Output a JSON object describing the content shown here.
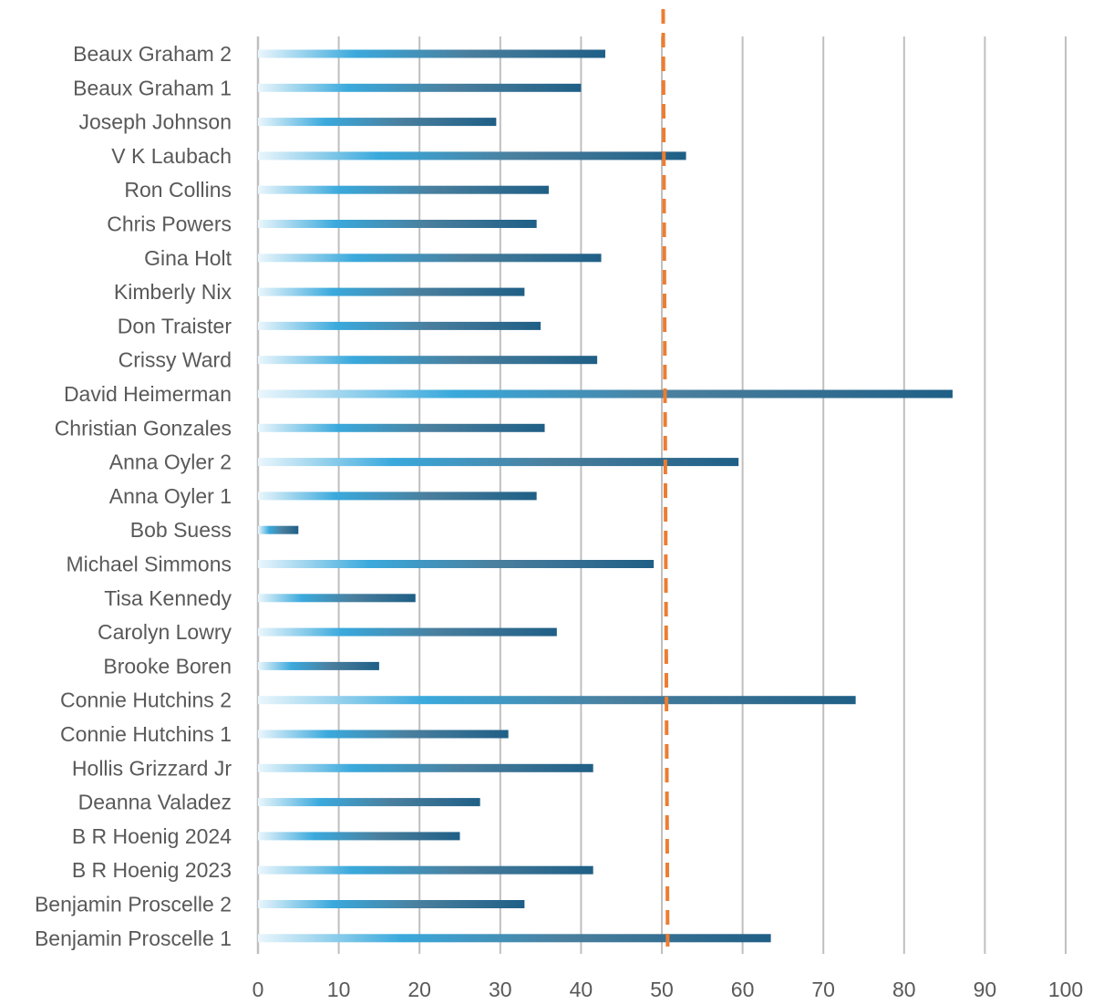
{
  "chart_data": {
    "type": "bar",
    "orientation": "horizontal",
    "categories": [
      "Beaux Graham 2",
      "Beaux Graham 1",
      "Joseph Johnson",
      "V K Laubach",
      "Ron Collins",
      "Chris Powers",
      "Gina Holt",
      "Kimberly Nix",
      "Don Traister",
      "Crissy Ward",
      "David Heimerman",
      "Christian Gonzales",
      "Anna Oyler 2",
      "Anna Oyler 1",
      "Bob Suess",
      "Michael Simmons",
      "Tisa Kennedy",
      "Carolyn Lowry",
      "Brooke Boren",
      "Connie Hutchins 2",
      "Connie Hutchins 1",
      "Hollis Grizzard Jr",
      "Deanna Valadez",
      "B R Hoenig 2024",
      "B R Hoenig 2023",
      "Benjamin Proscelle 2",
      "Benjamin Proscelle 1"
    ],
    "values": [
      43,
      40,
      29.5,
      53,
      36,
      34.5,
      42.5,
      33,
      35,
      42,
      86,
      35.5,
      59.5,
      34.5,
      5,
      49,
      19.5,
      37,
      15,
      74,
      31,
      41.5,
      27.5,
      25,
      41.5,
      33,
      63.5
    ],
    "reference_line": {
      "value": 50.5,
      "style": "dashed"
    },
    "title": "",
    "xlabel": "",
    "ylabel": "",
    "xlim": [
      0,
      100
    ],
    "xticks": [
      "0",
      "10",
      "20",
      "30",
      "40",
      "50",
      "60",
      "70",
      "80",
      "90",
      "100"
    ],
    "grid": "vertical",
    "legend": "none",
    "colors": {
      "bar_start": "#eaf6fc",
      "bar_mid": "#3aa9dc",
      "bar_steel": "#4a7f9e",
      "bar_end": "#1f5f86",
      "reference_line": "#ed7d31",
      "gridline": "#bfbfbf",
      "text": "#595959"
    }
  }
}
